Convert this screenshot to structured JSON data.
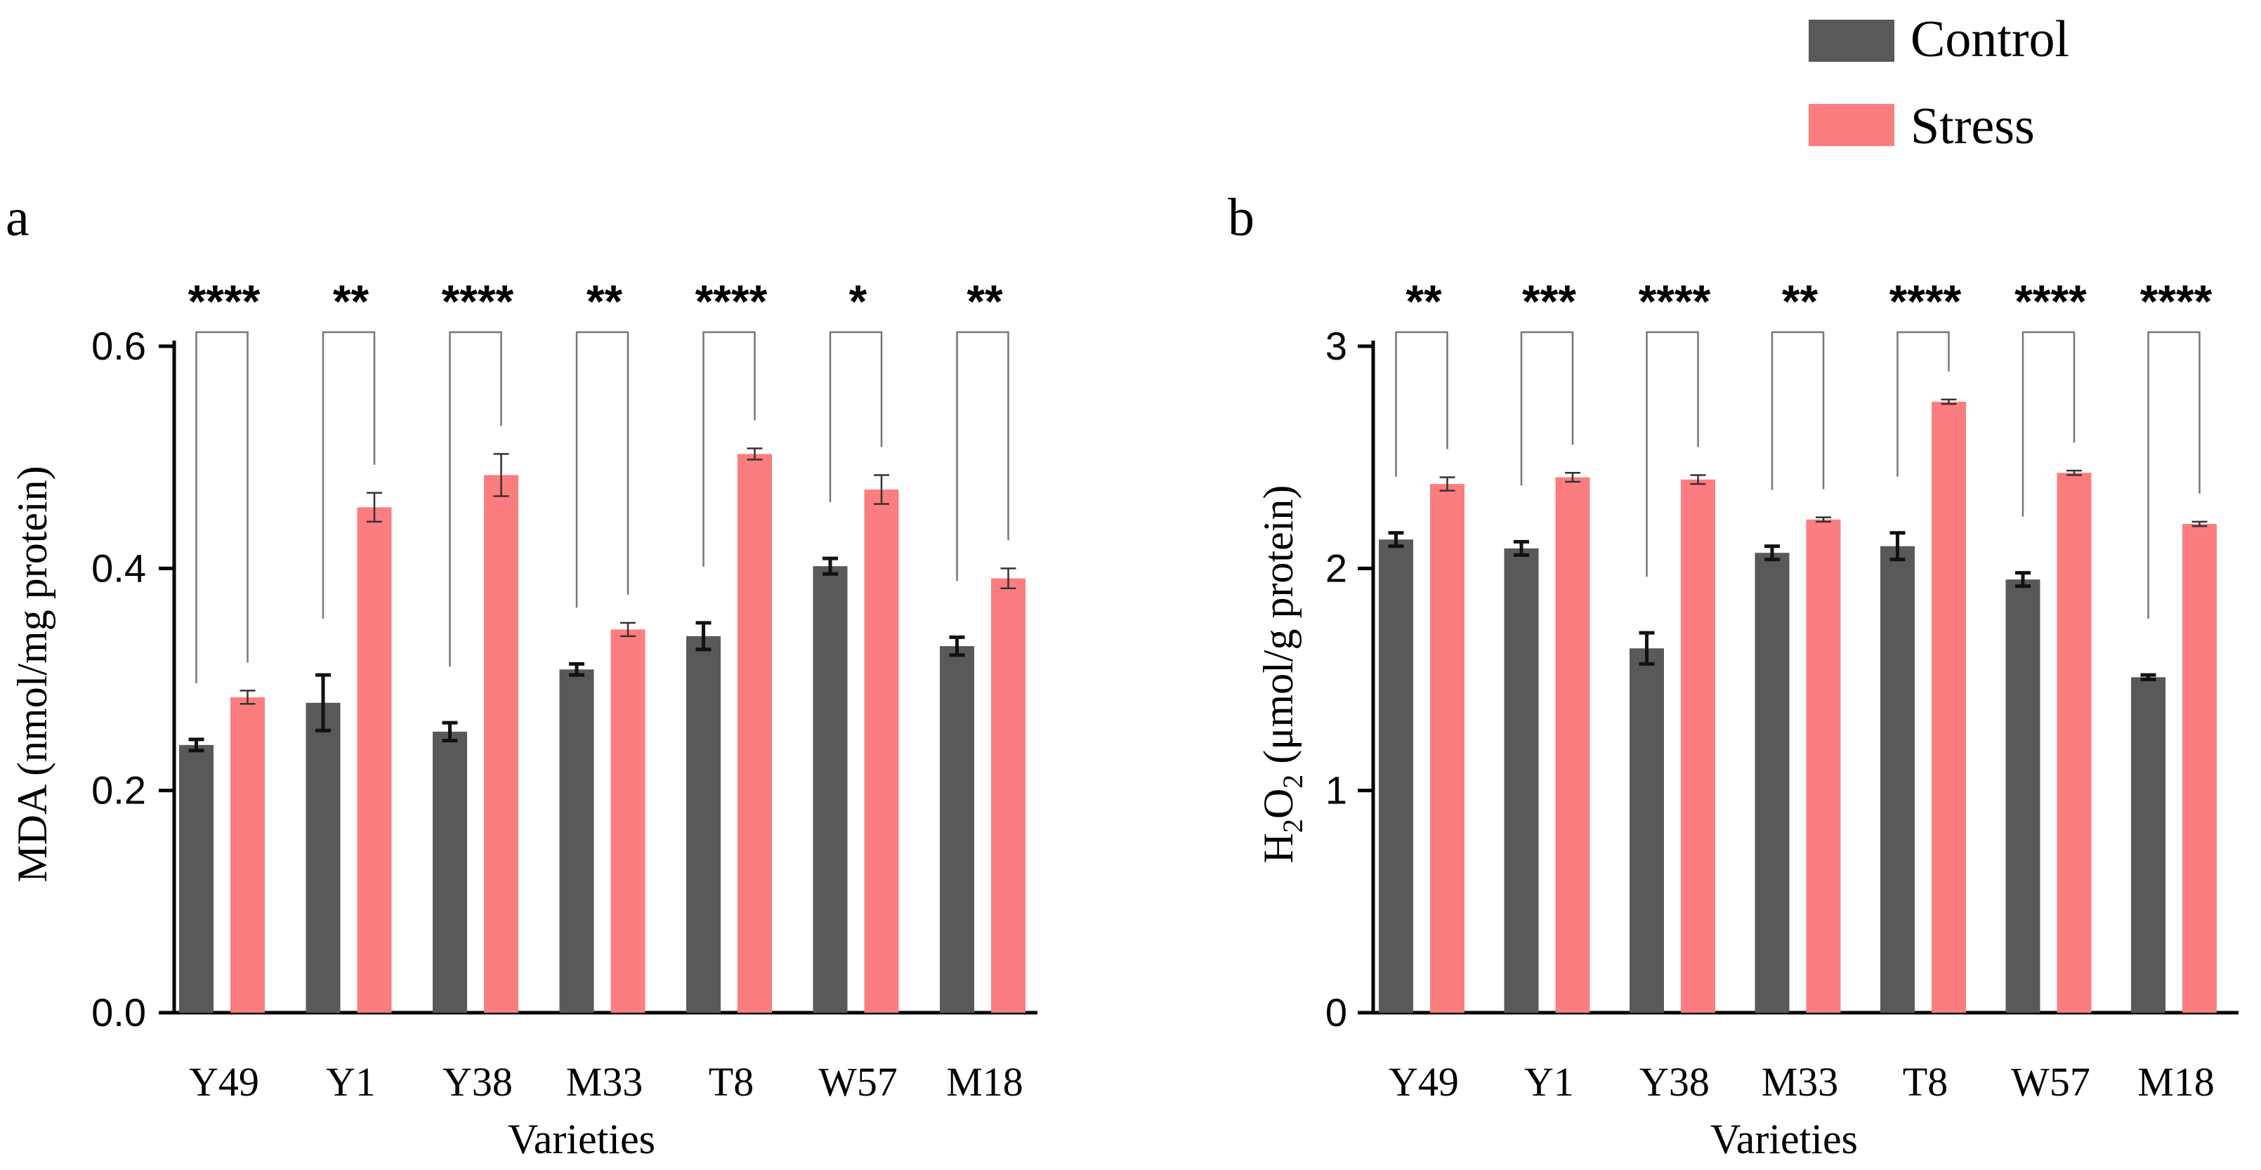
{
  "legend": {
    "entries": [
      {
        "label": "Control",
        "color": "#595959"
      },
      {
        "label": "Stress",
        "color": "#fc7d80"
      }
    ]
  },
  "chart_data": [
    {
      "type": "bar",
      "panel_label": "a",
      "categories": [
        "Y49",
        "Y1",
        "Y38",
        "M33",
        "T8",
        "W57",
        "M18"
      ],
      "series": [
        {
          "name": "Control",
          "values": [
            0.241,
            0.279,
            0.253,
            0.309,
            0.339,
            0.402,
            0.33
          ],
          "errors": [
            0.005,
            0.025,
            0.008,
            0.005,
            0.012,
            0.007,
            0.008
          ]
        },
        {
          "name": "Stress",
          "values": [
            0.284,
            0.455,
            0.484,
            0.345,
            0.503,
            0.471,
            0.391
          ],
          "errors": [
            0.006,
            0.013,
            0.019,
            0.006,
            0.005,
            0.013,
            0.009
          ]
        }
      ],
      "significance": [
        "****",
        "**",
        "****",
        "**",
        "****",
        "*",
        "**"
      ],
      "xlabel": "Varieties",
      "ylabel": "MDA (nmol/mg protein)",
      "ylim": [
        0,
        0.6
      ],
      "yticks": [
        0,
        0.2,
        0.4,
        0.6
      ],
      "ytick_labels": [
        "0.0",
        "0.2",
        "0.4",
        "0.6"
      ]
    },
    {
      "type": "bar",
      "panel_label": "b",
      "categories": [
        "Y49",
        "Y1",
        "Y38",
        "M33",
        "T8",
        "W57",
        "M18"
      ],
      "series": [
        {
          "name": "Control",
          "values": [
            2.13,
            2.09,
            1.64,
            2.07,
            2.1,
            1.95,
            1.51
          ],
          "errors": [
            0.03,
            0.03,
            0.07,
            0.03,
            0.06,
            0.03,
            0.01
          ]
        },
        {
          "name": "Stress",
          "values": [
            2.38,
            2.41,
            2.4,
            2.22,
            2.75,
            2.43,
            2.2
          ],
          "errors": [
            0.03,
            0.02,
            0.02,
            0.01,
            0.01,
            0.01,
            0.01
          ]
        }
      ],
      "significance": [
        "**",
        "***",
        "****",
        "**",
        "****",
        "****",
        "****"
      ],
      "xlabel": "Varieties",
      "ylabel_parts": [
        "H",
        "2",
        "O",
        "2",
        " (μmol/g protein)"
      ],
      "ylim": [
        0,
        3
      ],
      "yticks": [
        0,
        1,
        2,
        3
      ],
      "ytick_labels": [
        "0",
        "1",
        "2",
        "3"
      ]
    }
  ]
}
